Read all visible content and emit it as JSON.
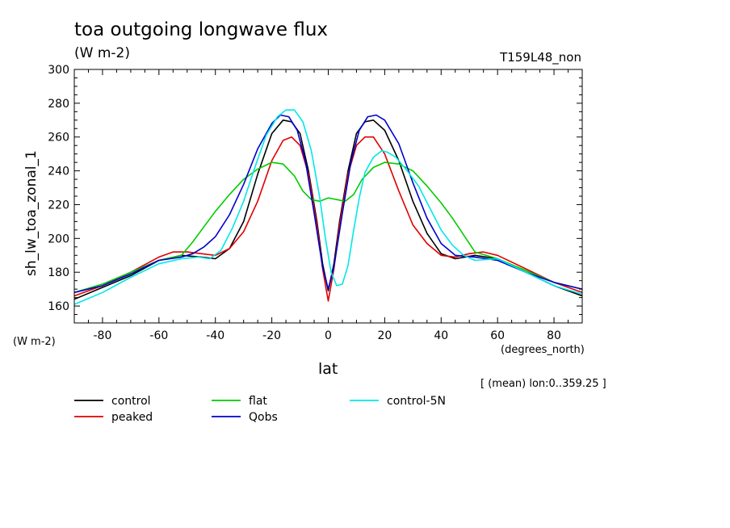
{
  "header": {
    "title": "toa outgoing longwave flux",
    "units": "(W m-2)",
    "run_id": "T159L48_non"
  },
  "axis_notes": {
    "y_units": "(W m-2)",
    "x_units": "(degrees_north)",
    "lon_note": "[ (mean) lon:0..359.25 ]"
  },
  "chart_data": {
    "type": "line",
    "title": "toa outgoing longwave flux",
    "xlabel": "lat",
    "ylabel": "sh_lw_toa_zonal_1",
    "xlim": [
      -90,
      90
    ],
    "ylim": [
      150,
      300
    ],
    "xticks": [
      -80,
      -60,
      -40,
      -20,
      0,
      20,
      40,
      60,
      80
    ],
    "yticks": [
      160,
      180,
      200,
      220,
      240,
      260,
      280,
      300
    ],
    "grid": false,
    "legend_position": "bottom",
    "series": [
      {
        "name": "control",
        "color": "#000000",
        "x": [
          -90,
          -80,
          -70,
          -60,
          -52,
          -45,
          -40,
          -35,
          -30,
          -25,
          -20,
          -16,
          -13,
          -10,
          -7,
          -4,
          -2,
          0,
          2,
          4,
          7,
          10,
          13,
          16,
          20,
          25,
          30,
          35,
          40,
          45,
          52,
          60,
          70,
          80,
          90
        ],
        "y": [
          164,
          171,
          178,
          187,
          190,
          189,
          188,
          194,
          210,
          238,
          262,
          270,
          269,
          262,
          240,
          210,
          185,
          169,
          185,
          210,
          240,
          262,
          269,
          270,
          264,
          246,
          222,
          203,
          191,
          188,
          190,
          188,
          180,
          172,
          166
        ]
      },
      {
        "name": "peaked",
        "color": "#e00000",
        "x": [
          -90,
          -80,
          -70,
          -60,
          -55,
          -50,
          -45,
          -40,
          -35,
          -30,
          -25,
          -20,
          -16,
          -13,
          -10,
          -7,
          -4,
          -2,
          0,
          2,
          4,
          7,
          10,
          13,
          16,
          20,
          25,
          30,
          35,
          40,
          45,
          50,
          55,
          60,
          70,
          80,
          90
        ],
        "y": [
          166,
          172,
          180,
          189,
          192,
          192,
          191,
          190,
          194,
          204,
          222,
          246,
          258,
          260,
          255,
          238,
          208,
          182,
          163,
          182,
          208,
          238,
          255,
          260,
          260,
          250,
          228,
          208,
          197,
          190,
          189,
          191,
          192,
          190,
          182,
          174,
          168
        ]
      },
      {
        "name": "flat",
        "color": "#00cc00",
        "x": [
          -90,
          -80,
          -70,
          -60,
          -52,
          -48,
          -44,
          -40,
          -35,
          -30,
          -25,
          -20,
          -16,
          -12,
          -9,
          -6,
          -3,
          0,
          3,
          6,
          9,
          12,
          16,
          20,
          25,
          30,
          35,
          40,
          44,
          48,
          52,
          60,
          70,
          80,
          90
        ],
        "y": [
          168,
          173,
          180,
          187,
          190,
          198,
          207,
          216,
          226,
          235,
          241,
          245,
          244,
          237,
          228,
          223,
          222,
          224,
          223,
          222,
          226,
          235,
          242,
          245,
          244,
          240,
          231,
          221,
          212,
          202,
          192,
          188,
          181,
          174,
          170
        ]
      },
      {
        "name": "Qobs",
        "color": "#0000cc",
        "x": [
          -90,
          -80,
          -70,
          -60,
          -52,
          -48,
          -44,
          -40,
          -35,
          -30,
          -25,
          -20,
          -17,
          -14,
          -11,
          -8,
          -5,
          -2,
          0,
          2,
          5,
          8,
          11,
          14,
          17,
          20,
          25,
          30,
          35,
          40,
          45,
          52,
          60,
          70,
          80,
          90
        ],
        "y": [
          168,
          172,
          179,
          187,
          189,
          191,
          195,
          201,
          214,
          232,
          253,
          268,
          273,
          272,
          264,
          245,
          215,
          183,
          170,
          183,
          215,
          245,
          264,
          272,
          273,
          270,
          256,
          233,
          212,
          197,
          190,
          189,
          187,
          180,
          174,
          170
        ]
      },
      {
        "name": "control-5N",
        "color": "#00e8e8",
        "x": [
          -90,
          -80,
          -70,
          -60,
          -52,
          -46,
          -42,
          -38,
          -34,
          -30,
          -26,
          -22,
          -18,
          -15,
          -12,
          -9,
          -6,
          -3,
          -1,
          1,
          3,
          5,
          7,
          9,
          11,
          13,
          16,
          19,
          21,
          24,
          28,
          32,
          36,
          40,
          44,
          48,
          52,
          60,
          70,
          80,
          90
        ],
        "y": [
          161,
          168,
          177,
          185,
          188,
          189,
          188,
          193,
          206,
          222,
          242,
          261,
          272,
          276,
          276,
          269,
          252,
          224,
          200,
          180,
          172,
          173,
          184,
          205,
          224,
          239,
          248,
          252,
          251,
          248,
          240,
          231,
          218,
          205,
          196,
          190,
          187,
          188,
          180,
          172,
          167
        ]
      }
    ]
  }
}
